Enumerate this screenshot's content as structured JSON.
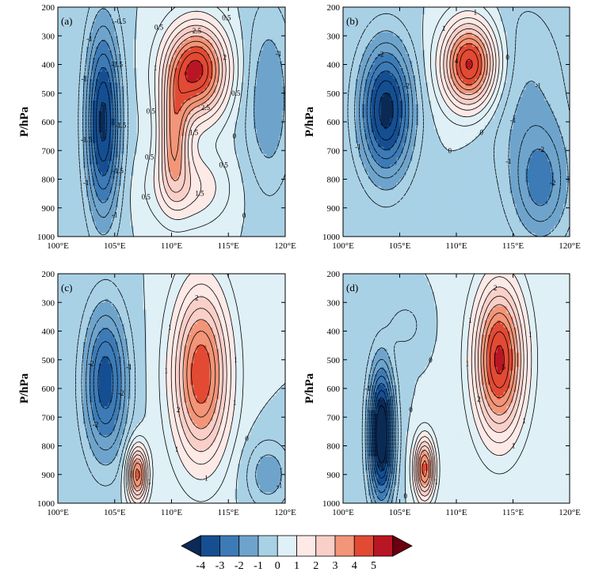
{
  "chart_data": {
    "type": "contour",
    "xlabel": "",
    "ylabel": "P/hPa",
    "x_ticks": [
      "100°E",
      "105°E",
      "110°E",
      "115°E",
      "120°E"
    ],
    "x_values": [
      100,
      105,
      110,
      115,
      120
    ],
    "y_ticks": [
      "200",
      "300",
      "400",
      "500",
      "600",
      "700",
      "800",
      "900",
      "1000"
    ],
    "y_values": [
      200,
      300,
      400,
      500,
      600,
      700,
      800,
      900,
      1000
    ],
    "xlim": [
      100,
      120
    ],
    "ylim": [
      1000,
      200
    ],
    "colorbar": {
      "labels": [
        "-4",
        "-3",
        "-2",
        "-1",
        "0",
        "1",
        "2",
        "3",
        "4",
        "5"
      ],
      "colors": [
        "#0b2a55",
        "#154f92",
        "#3d7bb6",
        "#6ea4cc",
        "#a9d1e6",
        "#dff0f6",
        "#fde9e6",
        "#f9cfc8",
        "#f29578",
        "#e24a34",
        "#b81622",
        "#6a0010"
      ]
    },
    "panels": [
      {
        "label": "(a)",
        "features": [
          {
            "x": 104.0,
            "p": 600,
            "rx": 1.5,
            "rp": 330,
            "amp": -4.2
          },
          {
            "x": 112.2,
            "p": 420,
            "rx": 2.7,
            "rp": 160,
            "amp": 5.2
          },
          {
            "x": 110.2,
            "p": 650,
            "rx": 1.3,
            "rp": 190,
            "amp": 3.2
          },
          {
            "x": 111.5,
            "p": 830,
            "rx": 3.5,
            "rp": 130,
            "amp": 1.6
          },
          {
            "x": 118.5,
            "p": 520,
            "rx": 2.2,
            "rp": 330,
            "amp": -1.5
          }
        ],
        "contour_labels": [
          "-0.5",
          "0",
          "0.5",
          "1",
          "1.5",
          "2",
          "2.5",
          "3",
          "3.5",
          "-1",
          "-1.5"
        ]
      },
      {
        "label": "(b)",
        "features": [
          {
            "x": 103.8,
            "p": 560,
            "rx": 2.3,
            "rp": 230,
            "amp": -4.3
          },
          {
            "x": 111.2,
            "p": 400,
            "rx": 2.4,
            "rp": 150,
            "amp": 5.3
          },
          {
            "x": 117.5,
            "p": 820,
            "rx": 2.5,
            "rp": 200,
            "amp": -2.0
          },
          {
            "x": 116.0,
            "p": 500,
            "rx": 4.0,
            "rp": 350,
            "amp": -1.0
          }
        ],
        "contour_labels": [
          "0",
          "1",
          "2",
          "3",
          "4",
          "5",
          "6",
          "-1",
          "-2"
        ]
      },
      {
        "label": "(c)",
        "features": [
          {
            "x": 104.2,
            "p": 580,
            "rx": 1.9,
            "rp": 260,
            "amp": -3.4
          },
          {
            "x": 112.6,
            "p": 550,
            "rx": 2.5,
            "rp": 300,
            "amp": 4.5
          },
          {
            "x": 107.0,
            "p": 900,
            "rx": 0.9,
            "rp": 100,
            "amp": 4.3
          },
          {
            "x": 118.5,
            "p": 900,
            "rx": 2.0,
            "rp": 120,
            "amp": -1.4
          }
        ],
        "contour_labels": [
          "0",
          "1",
          "2",
          "3",
          "4",
          "-1",
          "-2"
        ]
      },
      {
        "label": "(d)",
        "features": [
          {
            "x": 103.4,
            "p": 760,
            "rx": 1.1,
            "rp": 230,
            "amp": -5.5
          },
          {
            "x": 113.8,
            "p": 500,
            "rx": 2.2,
            "rp": 260,
            "amp": 5.2
          },
          {
            "x": 107.2,
            "p": 880,
            "rx": 0.9,
            "rp": 110,
            "amp": 4.3
          },
          {
            "x": 105.5,
            "p": 380,
            "rx": 1.3,
            "rp": 70,
            "amp": -0.9
          }
        ],
        "contour_labels": [
          "0",
          "1",
          "2",
          "3",
          "4",
          "5",
          "-1"
        ]
      }
    ]
  }
}
